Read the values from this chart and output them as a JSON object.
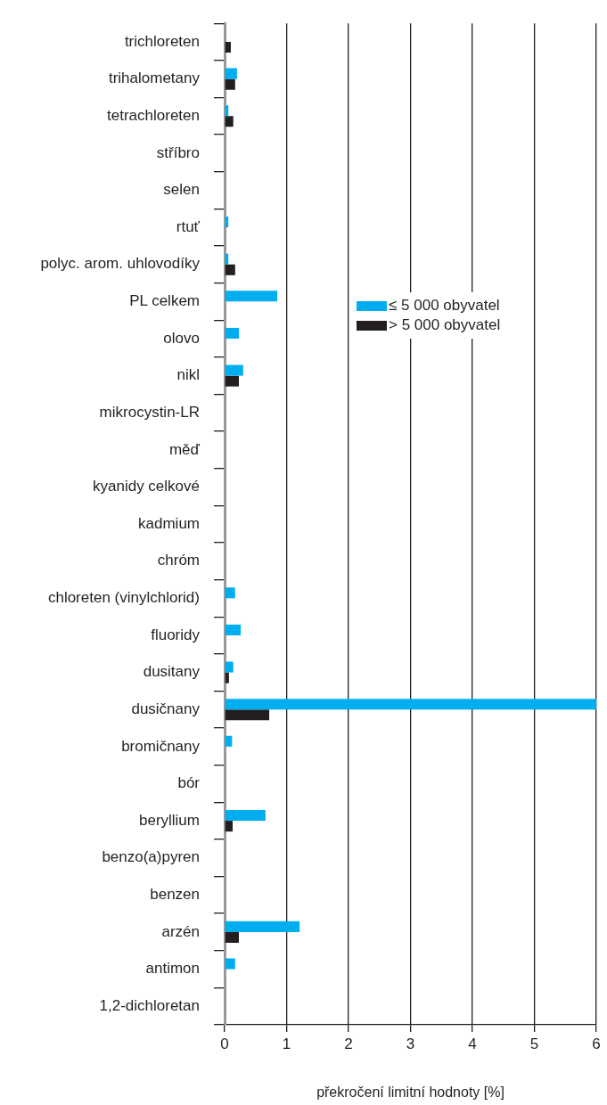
{
  "chart_data": {
    "type": "bar",
    "orientation": "horizontal",
    "xlabel": "překročení limitní hodnoty [%]",
    "categories": [
      "trichloreten",
      "trihalometany",
      "tetrachloreten",
      "stříbro",
      "selen",
      "rtuť",
      "polyc. arom. uhlovodíky",
      "PL celkem",
      "olovo",
      "nikl",
      "mikrocystin-LR",
      "měď",
      "kyanidy celkové",
      "kadmium",
      "chróm",
      "chloreten (vinylchlorid)",
      "fluoridy",
      "dusitany",
      "dusičnany",
      "bromičnany",
      "bór",
      "beryllium",
      "benzo(a)pyren",
      "benzen",
      "arzén",
      "antimon",
      "1,2-dichloretan"
    ],
    "series": [
      {
        "name": "≤ 5 000 obyvatel",
        "color": "#00aeef",
        "values": [
          0,
          0.2,
          0.06,
          0,
          0,
          0.06,
          0.06,
          0.85,
          0.23,
          0.3,
          0,
          0,
          0,
          0,
          0,
          0.17,
          0.26,
          0.14,
          6,
          0.12,
          0,
          0.66,
          0,
          0,
          1.21,
          0.17,
          0
        ]
      },
      {
        "name": "> 5 000 obyvatel",
        "color": "#231f20",
        "values": [
          0.1,
          0.17,
          0.14,
          0,
          0,
          0,
          0.17,
          0,
          0,
          0.23,
          0,
          0,
          0,
          0,
          0,
          0,
          0,
          0.07,
          0.72,
          0,
          0,
          0.13,
          0,
          0,
          0.23,
          0,
          0
        ]
      }
    ],
    "xlim": [
      0,
      6
    ],
    "xticks": [
      0,
      1,
      2,
      3,
      4,
      5,
      6
    ],
    "grid": "x",
    "legend": "right"
  }
}
